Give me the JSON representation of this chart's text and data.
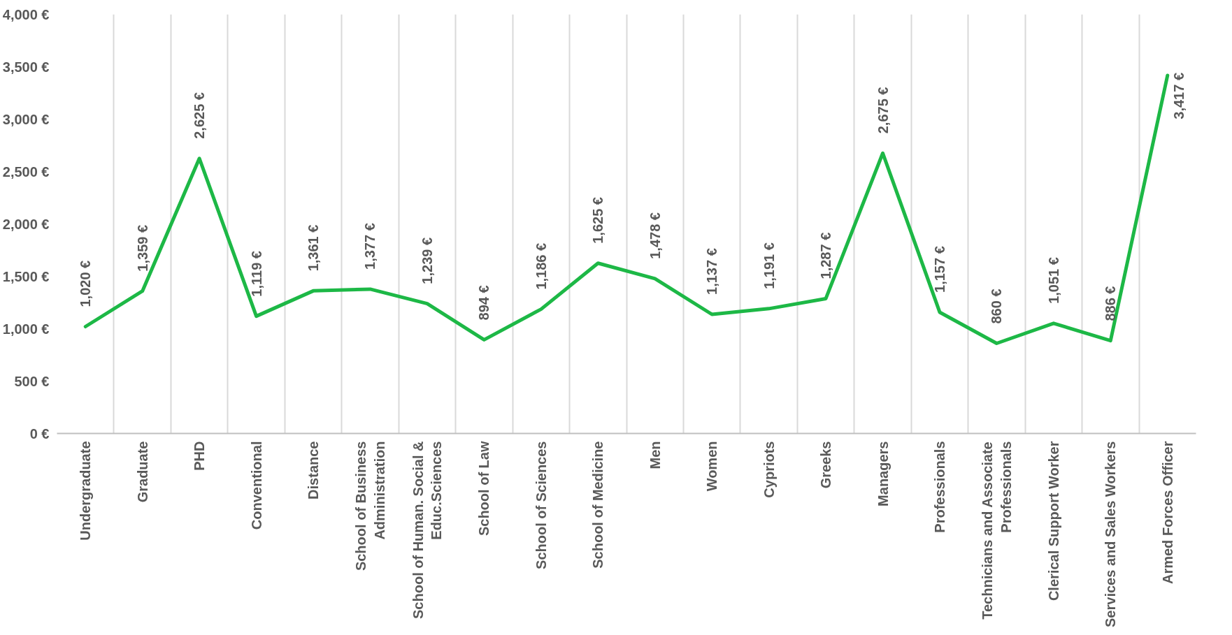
{
  "chart_data": {
    "type": "line",
    "categories": [
      "Undergraduate",
      "Graduate",
      "PHD",
      "Conventional",
      "Distance",
      "School of Business Administration",
      "School of Human. Social & Educ.Sciences",
      "School of Law",
      "School of Sciences",
      "School of Medicine",
      "Men",
      "Women",
      "Cypriots",
      "Greeks",
      "Managers",
      "Professionals",
      "Technicians and Associate Professionals",
      "Clerical Support Worker",
      "Services and Sales Workers",
      "Armed Forces Officer"
    ],
    "series": [
      {
        "color": "#1db846",
        "values": [
          1020,
          1359,
          2625,
          1119,
          1361,
          1377,
          1239,
          894,
          1186,
          1625,
          1478,
          1137,
          1191,
          1287,
          2675,
          1157,
          860,
          1051,
          886,
          3417
        ],
        "value_labels": [
          "1,020 €",
          "1,359 €",
          "2,625 €",
          "1,119 €",
          "1,361 €",
          "1,377 €",
          "1,239 €",
          "894 €",
          "1,186 €",
          "1,625 €",
          "1,478 €",
          "1,137 €",
          "1,191 €",
          "1,287 €",
          "2,675 €",
          "1,157 €",
          "860 €",
          "1,051 €",
          "886 €",
          "3,417 €"
        ]
      }
    ],
    "ylim": [
      0,
      4000
    ],
    "yticks": [
      {
        "value": 0,
        "label": "0 €"
      },
      {
        "value": 500,
        "label": "500 €"
      },
      {
        "value": 1000,
        "label": "1,000 €"
      },
      {
        "value": 1500,
        "label": "1,500 €"
      },
      {
        "value": 2000,
        "label": "2,000 €"
      },
      {
        "value": 2500,
        "label": "2,500 €"
      },
      {
        "value": 3000,
        "label": "3,000 €"
      },
      {
        "value": 3500,
        "label": "3,500 €"
      },
      {
        "value": 4000,
        "label": "4,000 €"
      }
    ],
    "grid": "x",
    "marker": "none",
    "line_style": "solid"
  }
}
